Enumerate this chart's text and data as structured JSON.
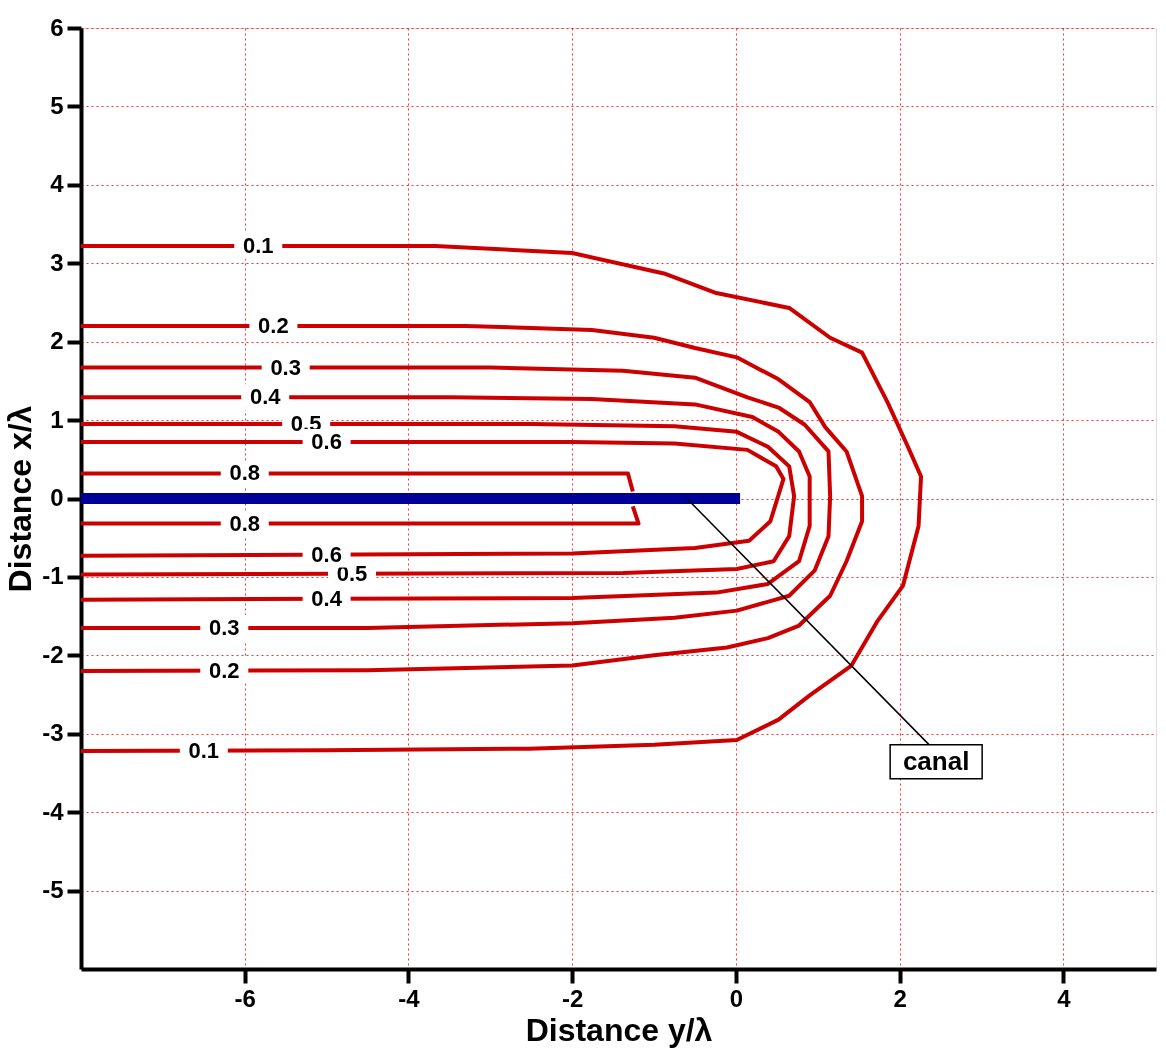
{
  "chart_data": {
    "type": "line",
    "xlabel": "Distance y/λ",
    "ylabel": "Distance x/λ",
    "xlim": [
      -8.0,
      5.13
    ],
    "ylim": [
      -6,
      6
    ],
    "xticks": [
      -6,
      -4,
      -2,
      0,
      2,
      4
    ],
    "yticks": [
      -5,
      -4,
      -3,
      -2,
      -1,
      0,
      1,
      2,
      3,
      4,
      5,
      6
    ],
    "grid": true,
    "line_style": "solid",
    "marker": "none",
    "series": [
      {
        "name": "0.1",
        "color": "#cc0000",
        "x": [
          -8.0,
          -3.67,
          -2.0,
          -0.88,
          -0.24,
          0.65,
          1.15,
          1.54,
          1.85,
          2.1,
          2.26,
          2.23,
          2.04,
          1.73,
          1.41,
          0.9,
          0.52,
          0.01,
          -1.0,
          -2.53,
          -5.0,
          -8.0
        ],
        "values": [
          3.22,
          3.22,
          3.13,
          2.87,
          2.62,
          2.43,
          2.05,
          1.86,
          1.23,
          0.66,
          0.28,
          -0.35,
          -1.11,
          -1.56,
          -2.13,
          -2.51,
          -2.82,
          -3.08,
          -3.14,
          -3.19,
          -3.21,
          -3.22
        ]
      },
      {
        "name": "0.2",
        "color": "#cc0000",
        "x": [
          -8.0,
          -3.3,
          -1.76,
          -1.0,
          -0.5,
          0.01,
          0.52,
          0.9,
          1.09,
          1.35,
          1.54,
          1.54,
          1.35,
          1.15,
          0.77,
          0.39,
          -0.11,
          -1.0,
          -2.0,
          -4.5,
          -8.0
        ],
        "values": [
          2.2,
          2.2,
          2.15,
          2.05,
          1.92,
          1.8,
          1.52,
          1.23,
          0.91,
          0.6,
          0.03,
          -0.29,
          -0.8,
          -1.24,
          -1.62,
          -1.78,
          -1.9,
          -2.0,
          -2.13,
          -2.19,
          -2.2
        ]
      },
      {
        "name": "0.3",
        "color": "#cc0000",
        "x": [
          -8.0,
          -3.0,
          -1.38,
          -0.5,
          0.14,
          0.52,
          0.84,
          1.13,
          1.15,
          1.13,
          0.96,
          0.65,
          0.01,
          -0.75,
          -2.0,
          -4.5,
          -8.0
        ],
        "values": [
          1.67,
          1.67,
          1.63,
          1.54,
          1.29,
          1.16,
          0.94,
          0.6,
          0.03,
          -0.48,
          -0.92,
          -1.24,
          -1.43,
          -1.52,
          -1.59,
          -1.65,
          -1.65
        ]
      },
      {
        "name": "0.4",
        "color": "#cc0000",
        "x": [
          -8.0,
          -3.5,
          -1.76,
          -0.5,
          0.2,
          0.52,
          0.77,
          0.9,
          0.9,
          0.77,
          0.39,
          -0.24,
          -2.0,
          -8.0
        ],
        "values": [
          1.29,
          1.29,
          1.27,
          1.2,
          1.04,
          0.85,
          0.6,
          0.28,
          -0.35,
          -0.8,
          -1.09,
          -1.2,
          -1.27,
          -1.29
        ]
      },
      {
        "name": "0.5",
        "color": "#cc0000",
        "x": [
          -8.0,
          -2.5,
          -0.75,
          0.01,
          0.39,
          0.65,
          0.71,
          0.65,
          0.46,
          0.01,
          -1.38,
          -8.0
        ],
        "values": [
          0.95,
          0.95,
          0.92,
          0.85,
          0.66,
          0.41,
          0.03,
          -0.48,
          -0.8,
          -0.9,
          -0.95,
          -0.97
        ]
      },
      {
        "name": "0.6",
        "color": "#cc0000",
        "x": [
          -8.0,
          -2.0,
          -0.75,
          0.14,
          0.49,
          0.58,
          0.42,
          0.16,
          -0.5,
          -2.0,
          -8.0
        ],
        "values": [
          0.72,
          0.72,
          0.7,
          0.62,
          0.41,
          0.25,
          -0.29,
          -0.54,
          -0.63,
          -0.7,
          -0.73
        ]
      },
      {
        "name": "0.8",
        "color": "#cc0000",
        "x": [
          -8.0,
          -4.0,
          -1.32,
          -1.26
        ],
        "values": [
          0.32,
          0.32,
          0.32,
          0.09
        ]
      },
      {
        "name": "0.8",
        "color": "#cc0000",
        "x": [
          -8.0,
          -4.0,
          -1.19,
          -1.26
        ],
        "values": [
          -0.32,
          -0.32,
          -0.32,
          -0.1
        ]
      },
      {
        "color": "#000099",
        "x": [
          -8.0,
          0.05
        ],
        "values": [
          0,
          0
        ]
      }
    ],
    "annotations": [
      {
        "text": "canal",
        "x": -0.6,
        "y": 0
      }
    ]
  }
}
